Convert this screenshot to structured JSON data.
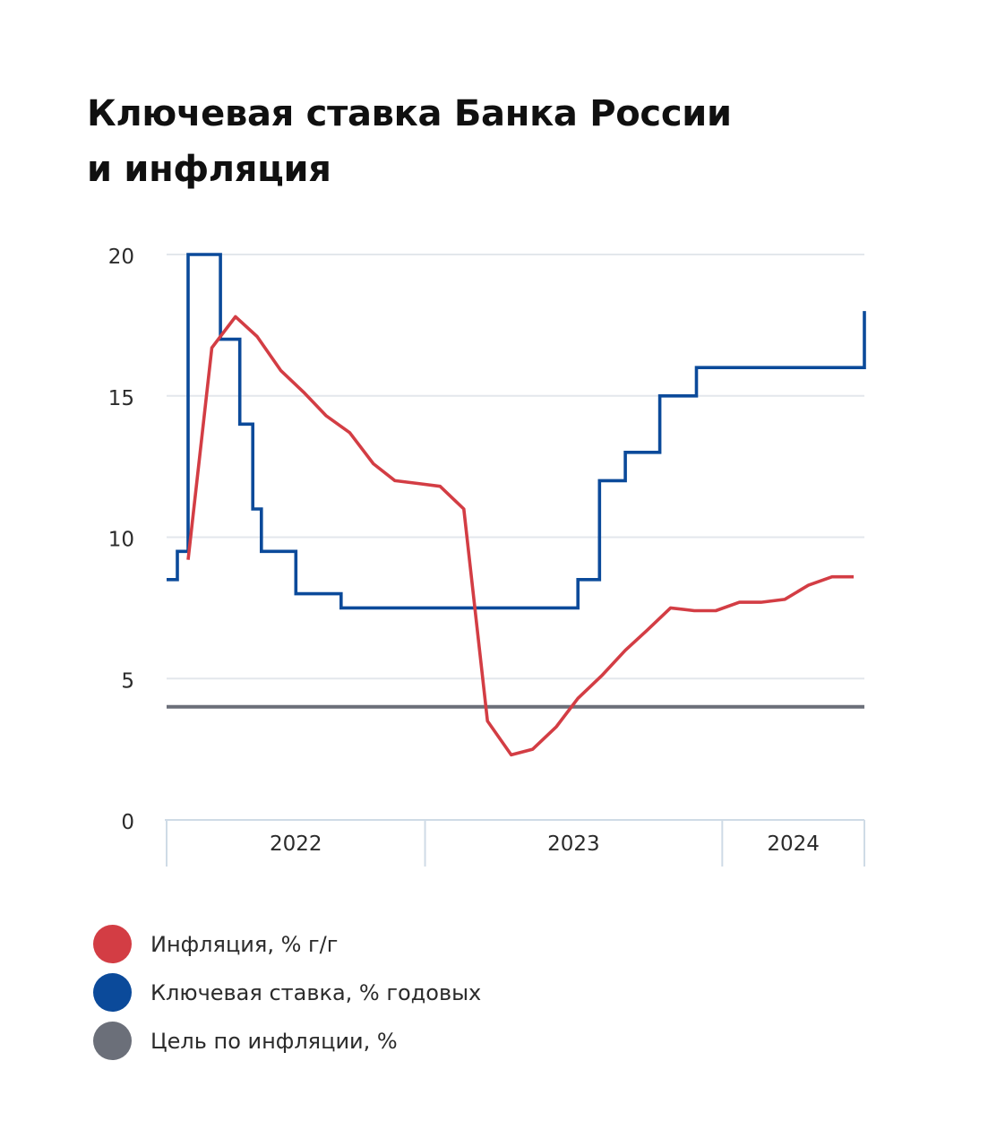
{
  "title_lines": [
    "Ключевая ставка Банка России",
    "и инфляция"
  ],
  "chart_data": {
    "type": "line",
    "title": "Ключевая ставка Банка России и инфляция",
    "x_unit": "months since Jan 2022",
    "xlim": [
      0,
      32.4
    ],
    "ylim": [
      0,
      20
    ],
    "y_ticks": [
      0,
      5,
      10,
      15,
      20
    ],
    "y_tick_labels": [
      "0",
      "5",
      "10",
      "15",
      "20"
    ],
    "x_groups": [
      {
        "label": "2022",
        "start": 0,
        "end": 12
      },
      {
        "label": "2023",
        "start": 12,
        "end": 25.8
      },
      {
        "label": "2024",
        "start": 25.8,
        "end": 32.4
      }
    ],
    "grid": true,
    "legend_position": "bottom-left",
    "series": [
      {
        "name": "Инфляция, % г/г",
        "color": "#d33d44",
        "step": false,
        "x": [
          1.0,
          2.1,
          3.2,
          4.2,
          5.3,
          6.4,
          7.4,
          8.5,
          9.6,
          10.6,
          11.7,
          12.7,
          13.8,
          14.9,
          16.0,
          17.0,
          18.1,
          19.1,
          20.2,
          21.3,
          22.3,
          23.4,
          24.5,
          25.5,
          26.6,
          27.6,
          28.7,
          29.8,
          30.9,
          31.9
        ],
        "y": [
          9.2,
          16.7,
          17.8,
          17.1,
          15.9,
          15.1,
          14.3,
          13.7,
          12.6,
          12.0,
          11.9,
          11.8,
          11.0,
          3.5,
          2.3,
          2.5,
          3.3,
          4.3,
          5.1,
          6.0,
          6.7,
          7.5,
          7.4,
          7.4,
          7.7,
          7.7,
          7.8,
          8.3,
          8.6,
          8.6
        ]
      },
      {
        "name": "Ключевая ставка, % годовых",
        "color": "#0b4a9a",
        "step": true,
        "x": [
          0.0,
          0.5,
          1.0,
          2.5,
          3.4,
          4.0,
          4.4,
          4.9,
          6.0,
          8.1,
          19.1,
          20.1,
          21.3,
          22.9,
          24.6,
          32.4
        ],
        "y": [
          8.5,
          9.5,
          20.0,
          17.0,
          14.0,
          11.0,
          9.5,
          9.5,
          8.0,
          7.5,
          8.5,
          12.0,
          13.0,
          15.0,
          16.0,
          18.0
        ]
      },
      {
        "name": "Цель по инфляции, %",
        "color": "#6b6f79",
        "step": false,
        "x": [
          0.0,
          32.4
        ],
        "y": [
          4.0,
          4.0
        ]
      }
    ]
  }
}
